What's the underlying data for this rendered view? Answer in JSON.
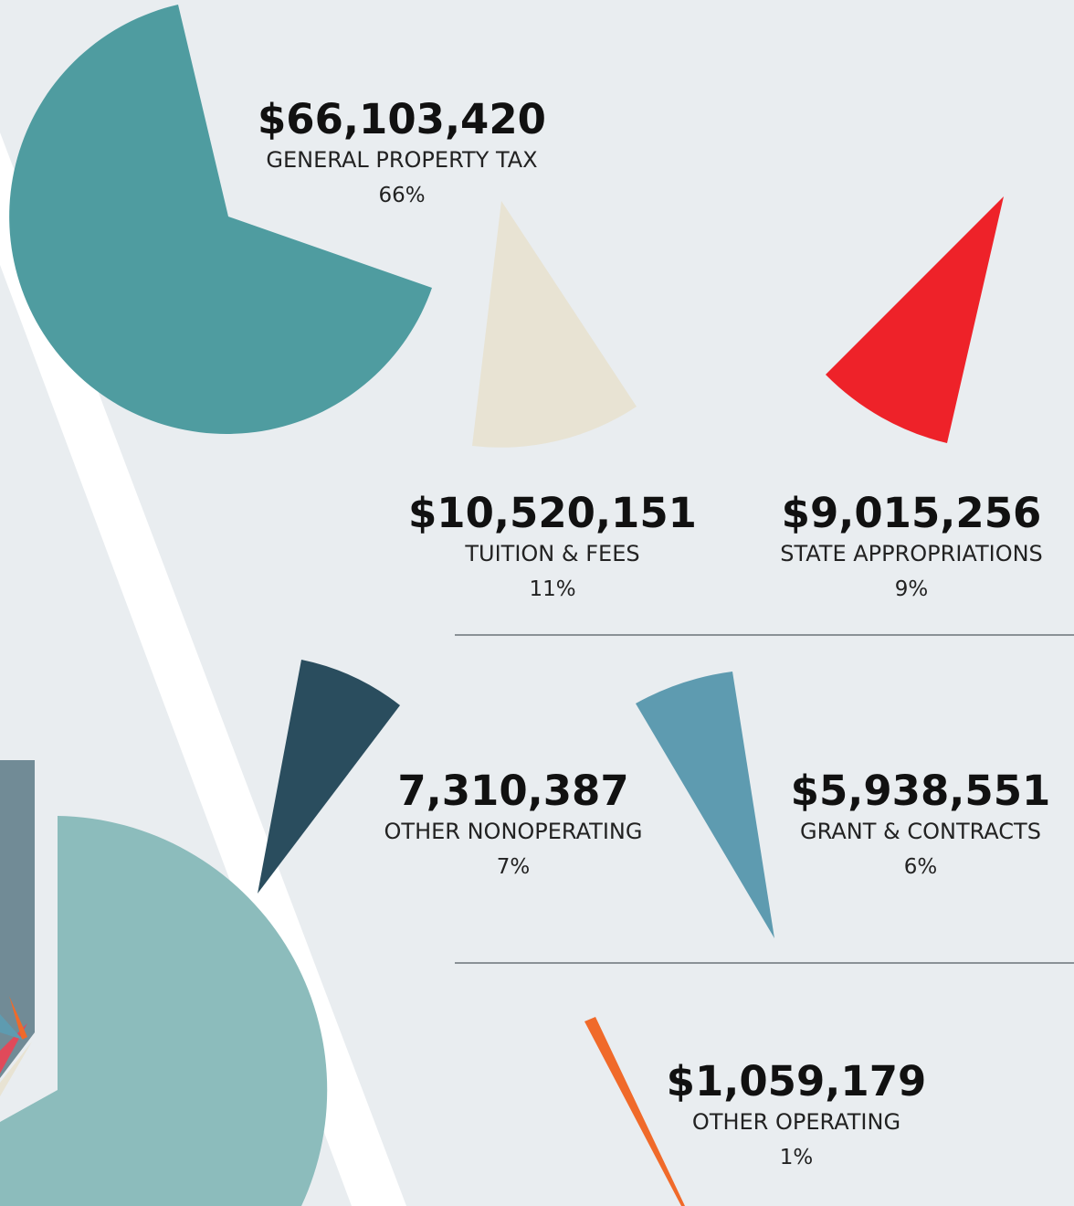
{
  "items": [
    {
      "amount": "$66,103,420",
      "label": "GENERAL PROPERTY TAX",
      "percent": "66%"
    },
    {
      "amount": "$10,520,151",
      "label": "TUITION & FEES",
      "percent": "11%"
    },
    {
      "amount": "$9,015,256",
      "label": "STATE APPROPRIATIONS",
      "percent": "9%"
    },
    {
      "amount": "7,310,387",
      "label": "OTHER NONOPERATING",
      "percent": "7%"
    },
    {
      "amount": "$5,938,551",
      "label": "GRANT & CONTRACTS",
      "percent": "6%"
    },
    {
      "amount": "$1,059,179",
      "label": "OTHER OPERATING",
      "percent": "1%"
    }
  ]
}
